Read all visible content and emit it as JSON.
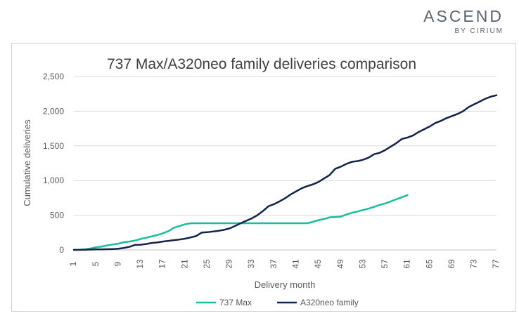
{
  "brand": {
    "name": "ASCEND",
    "sub": "BY CIRIUM"
  },
  "colors": {
    "series_737": "#1abc9c",
    "series_a320": "#14234b",
    "grid": "#d9d9d9",
    "axis": "#bfbfbf",
    "text": "#595959"
  },
  "chart_data": {
    "type": "line",
    "title": "737 Max/A320neo family deliveries comparison",
    "xlabel": "Delivery month",
    "ylabel": "Cumulative deliveries",
    "xlim": [
      1,
      77
    ],
    "ylim": [
      0,
      2500
    ],
    "yticks": [
      0,
      500,
      1000,
      1500,
      2000,
      2500
    ],
    "ytick_labels": [
      "0",
      "500",
      "1,000",
      "1,500",
      "2,000",
      "2,500"
    ],
    "xticks": [
      1,
      5,
      9,
      13,
      17,
      21,
      25,
      29,
      33,
      37,
      41,
      45,
      49,
      53,
      57,
      61,
      65,
      69,
      73,
      77
    ],
    "grid": "horizontal",
    "legend": "bottom",
    "series": [
      {
        "name": "737 Max",
        "color": "#1abc9c",
        "values": [
          0,
          2,
          8,
          20,
          38,
          48,
          65,
          78,
          90,
          110,
          120,
          135,
          158,
          175,
          195,
          215,
          240,
          270,
          320,
          345,
          370,
          383,
          385,
          385,
          385,
          385,
          385,
          385,
          385,
          385,
          385,
          385,
          385,
          385,
          385,
          385,
          385,
          385,
          385,
          385,
          385,
          385,
          385,
          405,
          430,
          445,
          470,
          475,
          480,
          510,
          535,
          555,
          575,
          595,
          620,
          650,
          670,
          700,
          730,
          760,
          790
        ]
      },
      {
        "name": "A320neo family",
        "color": "#14234b",
        "values": [
          0,
          1,
          3,
          5,
          7,
          8,
          10,
          12,
          18,
          28,
          45,
          72,
          75,
          85,
          100,
          108,
          120,
          130,
          140,
          150,
          162,
          180,
          200,
          250,
          255,
          265,
          275,
          290,
          310,
          345,
          385,
          420,
          455,
          500,
          560,
          630,
          660,
          700,
          745,
          800,
          845,
          890,
          920,
          945,
          980,
          1030,
          1080,
          1170,
          1200,
          1240,
          1270,
          1280,
          1300,
          1330,
          1380,
          1400,
          1440,
          1490,
          1540,
          1600,
          1620,
          1650,
          1700,
          1740,
          1780,
          1830,
          1860,
          1900,
          1930,
          1960,
          2000,
          2060,
          2100,
          2140,
          2180,
          2210,
          2230
        ]
      }
    ]
  }
}
